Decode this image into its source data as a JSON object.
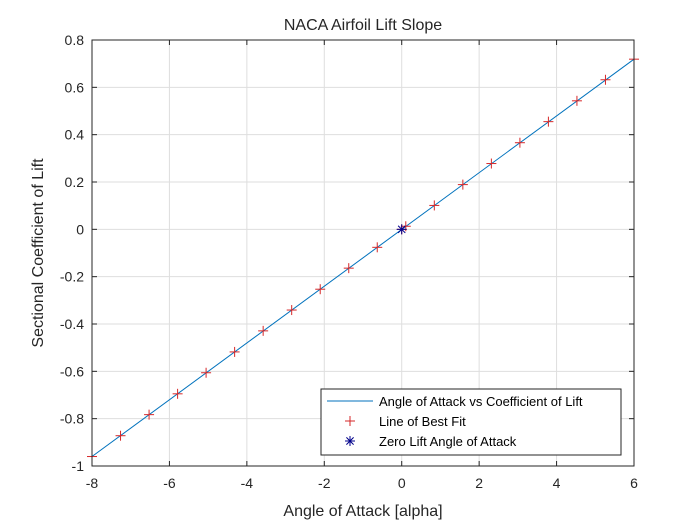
{
  "chart_data": {
    "type": "line",
    "title": "NACA Airfoil Lift Slope",
    "xlabel": "Angle of Attack [alpha]",
    "ylabel": "Sectional Coefficient of Lift",
    "xlim": [
      -8,
      6
    ],
    "ylim": [
      -1,
      0.8
    ],
    "xticks": [
      -8,
      -6,
      -4,
      -2,
      0,
      2,
      4,
      6
    ],
    "xtick_labels": [
      "-8",
      "-6",
      "-4",
      "-2",
      "0",
      "2",
      "4",
      "6"
    ],
    "yticks": [
      -1,
      -0.8,
      -0.6,
      -0.4,
      -0.2,
      0,
      0.2,
      0.4,
      0.6,
      0.8
    ],
    "ytick_labels": [
      "-1",
      "-0.8",
      "-0.6",
      "-0.4",
      "-0.2",
      "0",
      "0.2",
      "0.4",
      "0.6",
      "0.8"
    ],
    "grid": true,
    "legend_location": "bottom-right",
    "series": [
      {
        "name": "Angle of Attack vs Coefficient of Lift",
        "style": "line",
        "color": "#0072BD",
        "x": [
          -8,
          6
        ],
        "y": [
          -0.96,
          0.719
        ]
      },
      {
        "name": "Line of Best Fit",
        "style": "plus-marker",
        "color": "#D62728",
        "x": [
          -8.0,
          -7.263,
          -6.526,
          -5.789,
          -5.053,
          -4.316,
          -3.579,
          -2.842,
          -2.105,
          -1.368,
          -0.632,
          0.0,
          0.105,
          0.842,
          1.579,
          2.316,
          3.053,
          3.789,
          4.526,
          5.263,
          6.0
        ],
        "y": [
          -0.96,
          -0.872,
          -0.783,
          -0.695,
          -0.606,
          -0.518,
          -0.429,
          -0.341,
          -0.253,
          -0.164,
          -0.076,
          0.0,
          0.013,
          0.101,
          0.189,
          0.278,
          0.366,
          0.455,
          0.543,
          0.632,
          0.719
        ]
      },
      {
        "name": "Zero Lift Angle of Attack",
        "style": "asterisk-marker",
        "color": "#00008B",
        "x": [
          0.0
        ],
        "y": [
          0.0
        ]
      }
    ]
  }
}
